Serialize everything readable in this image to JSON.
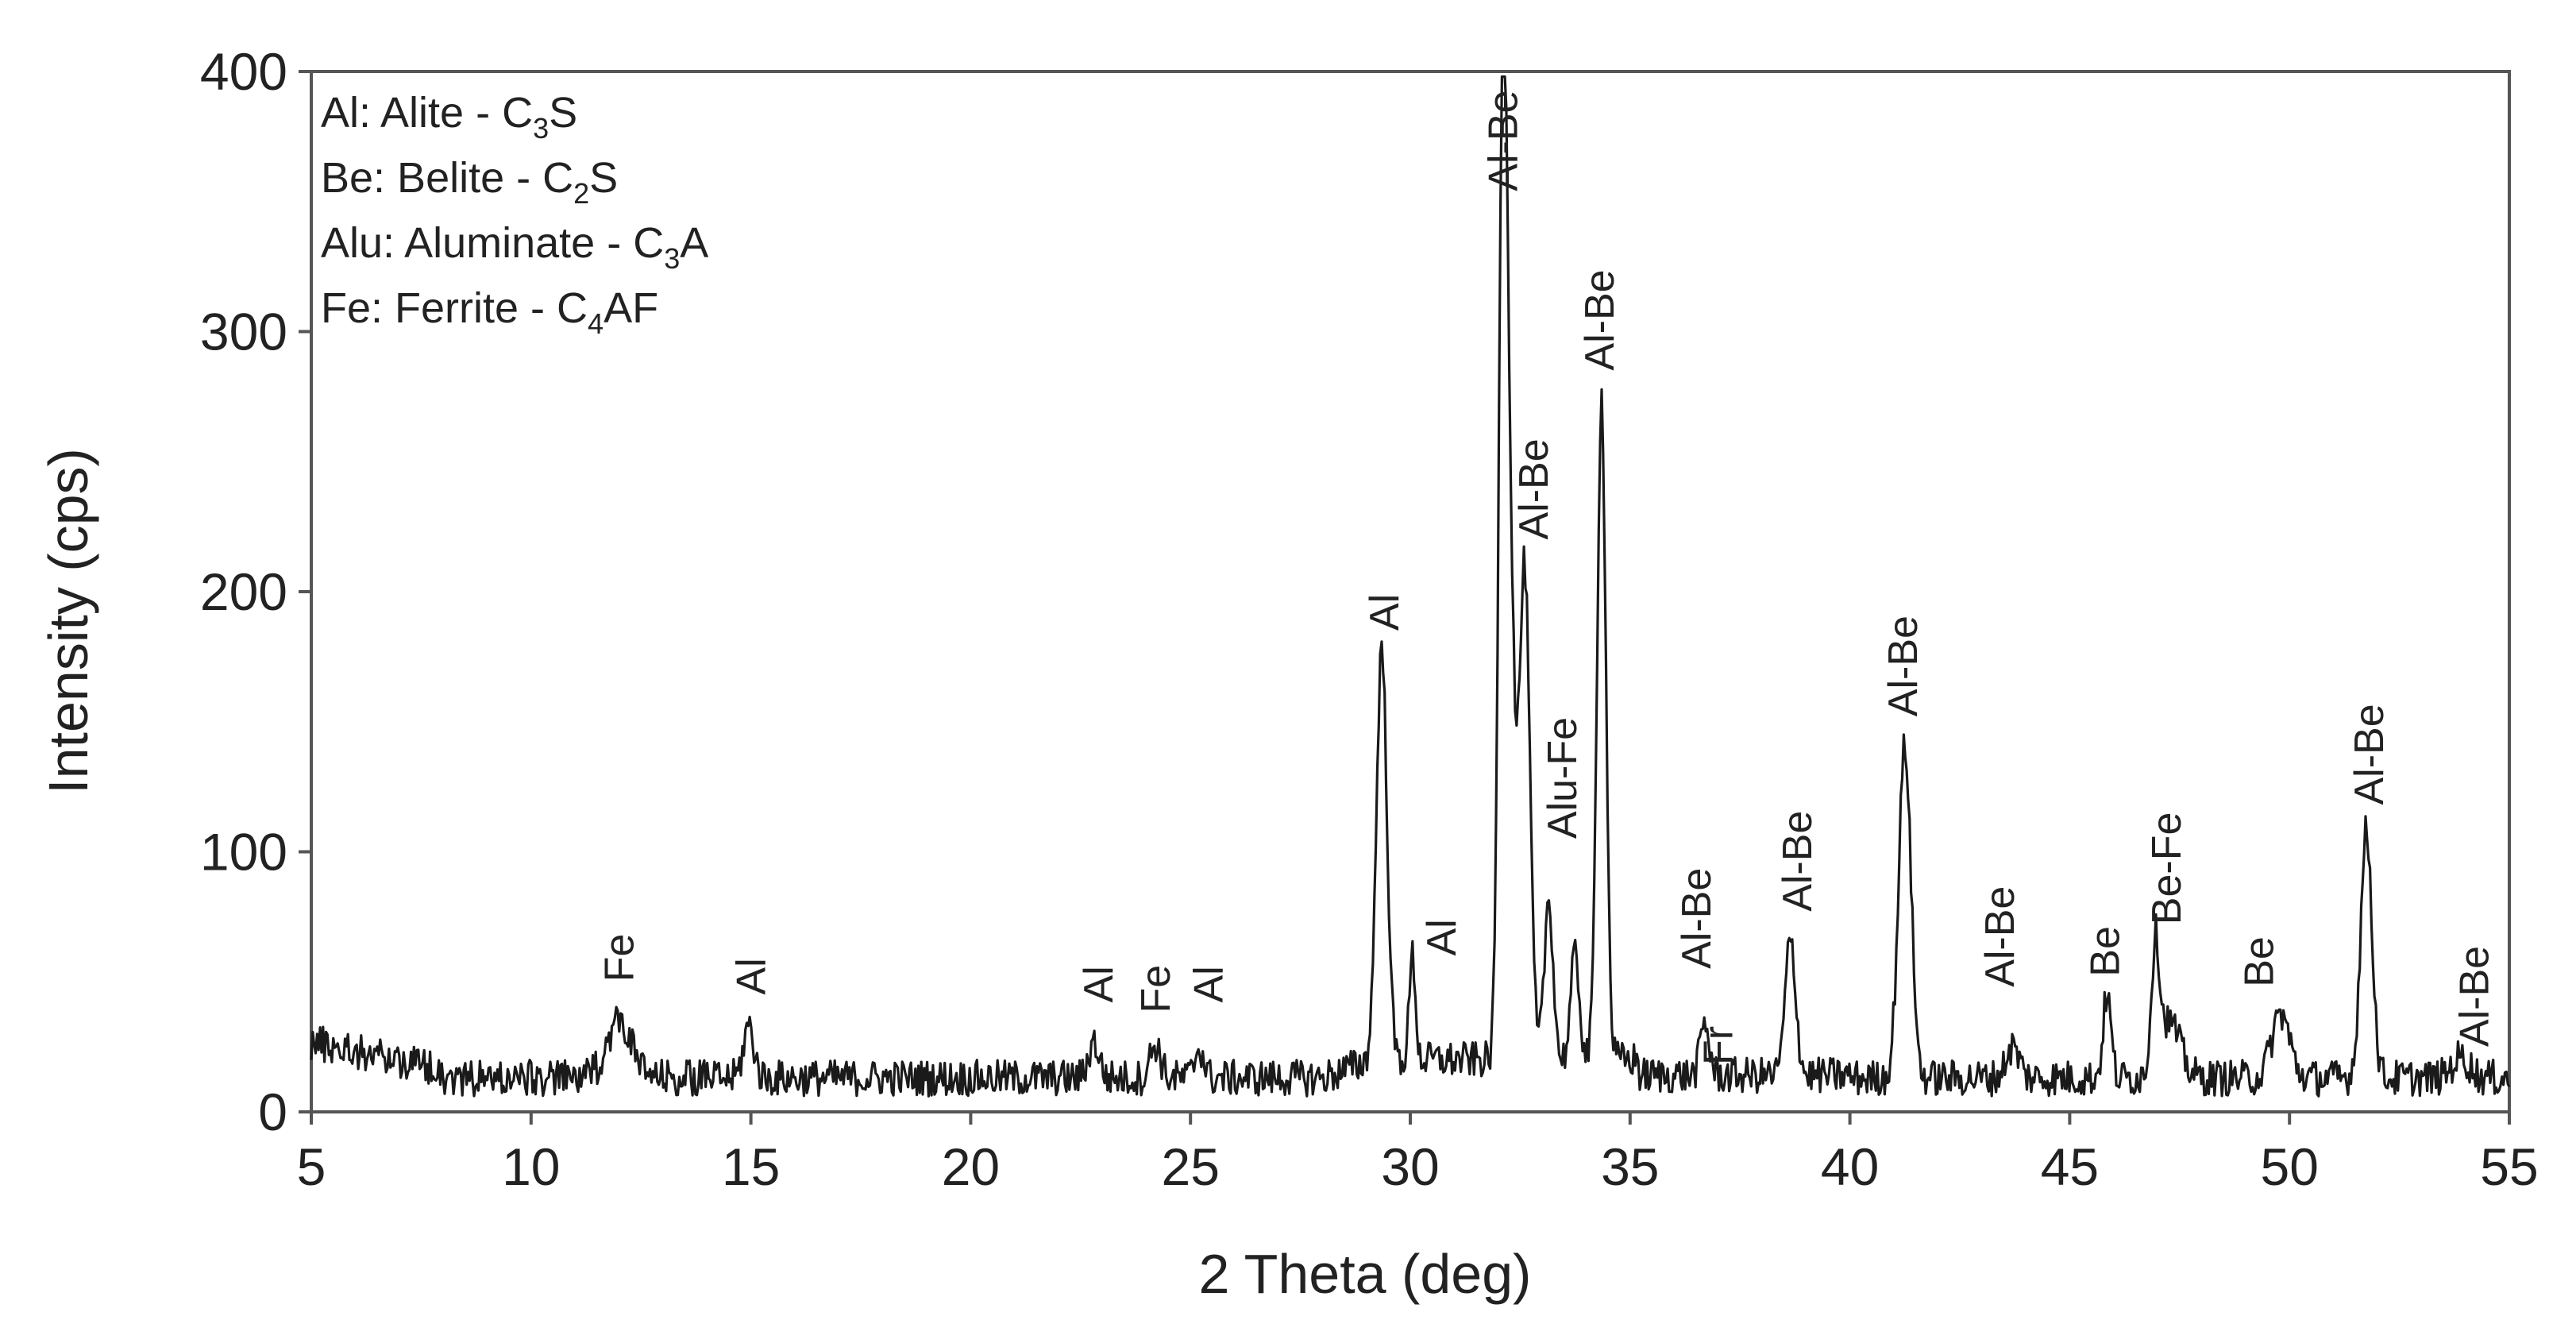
{
  "chart_data": {
    "type": "line",
    "xlabel": "2 Theta (deg)",
    "ylabel": "Intensity (cps)",
    "xlim": [
      5,
      55
    ],
    "ylim": [
      0,
      400
    ],
    "x_ticks": [
      5,
      10,
      15,
      20,
      25,
      30,
      35,
      40,
      45,
      50,
      55
    ],
    "y_ticks": [
      0,
      100,
      200,
      300,
      400
    ],
    "grid": false,
    "line_color": "#1a1a1a",
    "legend_position": "top-left",
    "legend": [
      {
        "abbr": "Al",
        "name": "Alite",
        "formula": [
          {
            "t": "C"
          },
          {
            "s": "3"
          },
          {
            "t": "S"
          }
        ]
      },
      {
        "abbr": "Be",
        "name": "Belite",
        "formula": [
          {
            "t": "C"
          },
          {
            "s": "2"
          },
          {
            "t": "S"
          }
        ]
      },
      {
        "abbr": "Alu",
        "name": "Aluminate",
        "formula": [
          {
            "t": "C"
          },
          {
            "s": "3"
          },
          {
            "t": "A"
          }
        ]
      },
      {
        "abbr": "Fe",
        "name": "Ferrite",
        "formula": [
          {
            "t": "C"
          },
          {
            "s": "4"
          },
          {
            "t": "AF"
          }
        ]
      }
    ],
    "peaks": [
      {
        "x": 12.0,
        "y": 22,
        "w": 0.28
      },
      {
        "x": 14.95,
        "y": 20,
        "w": 0.12
      },
      {
        "x": 22.8,
        "y": 14,
        "w": 0.12
      },
      {
        "x": 24.2,
        "y": 13,
        "w": 0.12
      },
      {
        "x": 25.2,
        "y": 12,
        "w": 0.1
      },
      {
        "x": 29.35,
        "y": 158,
        "w": 0.12
      },
      {
        "x": 30.05,
        "y": 40,
        "w": 0.07
      },
      {
        "x": 32.1,
        "y": 325,
        "w": 0.09
      },
      {
        "x": 32.25,
        "y": 190,
        "w": 0.12
      },
      {
        "x": 32.6,
        "y": 188,
        "w": 0.12
      },
      {
        "x": 33.15,
        "y": 62,
        "w": 0.1
      },
      {
        "x": 33.75,
        "y": 40,
        "w": 0.1
      },
      {
        "x": 34.35,
        "y": 255,
        "w": 0.1
      },
      {
        "x": 36.7,
        "y": 20,
        "w": 0.1
      },
      {
        "x": 38.65,
        "y": 52,
        "w": 0.12
      },
      {
        "x": 41.25,
        "y": 128,
        "w": 0.14
      },
      {
        "x": 43.7,
        "y": 12,
        "w": 0.15
      },
      {
        "x": 45.85,
        "y": 32,
        "w": 0.09
      },
      {
        "x": 46.95,
        "y": 45,
        "w": 0.09
      },
      {
        "x": 47.25,
        "y": 22,
        "w": 0.25
      },
      {
        "x": 49.8,
        "y": 25,
        "w": 0.2
      },
      {
        "x": 51.75,
        "y": 95,
        "w": 0.13
      },
      {
        "x": 53.9,
        "y": 8,
        "w": 0.2
      }
    ],
    "annotations": [
      {
        "text": "Fe",
        "x": 12.0,
        "y": 50
      },
      {
        "text": "Al",
        "x": 15.0,
        "y": 45
      },
      {
        "text": "Al",
        "x": 22.9,
        "y": 42
      },
      {
        "text": "Fe",
        "x": 24.2,
        "y": 38
      },
      {
        "text": "Al",
        "x": 25.4,
        "y": 42
      },
      {
        "text": "Al",
        "x": 29.4,
        "y": 185
      },
      {
        "text": "Al",
        "x": 30.7,
        "y": 60
      },
      {
        "text": "Al-Be",
        "x": 32.1,
        "y": 354
      },
      {
        "text": "Al-Be",
        "x": 32.8,
        "y": 220
      },
      {
        "text": "Alu-Fe",
        "x": 33.45,
        "y": 105
      },
      {
        "text": "Al-Be",
        "x": 34.3,
        "y": 285
      },
      {
        "text": "Al-Be",
        "x": 36.5,
        "y": 55
      },
      {
        "text": "Fr",
        "x": 37.0,
        "y": 18
      },
      {
        "text": "Al-Be",
        "x": 38.8,
        "y": 77
      },
      {
        "text": "Al-Be",
        "x": 41.2,
        "y": 152
      },
      {
        "text": "Al-Be",
        "x": 43.4,
        "y": 48
      },
      {
        "text": "Be",
        "x": 45.8,
        "y": 52
      },
      {
        "text": "Be-Fe",
        "x": 47.2,
        "y": 72
      },
      {
        "text": "Be",
        "x": 49.3,
        "y": 48
      },
      {
        "text": "Al-Be",
        "x": 51.8,
        "y": 118
      },
      {
        "text": "Al-Be",
        "x": 54.2,
        "y": 25
      }
    ]
  }
}
